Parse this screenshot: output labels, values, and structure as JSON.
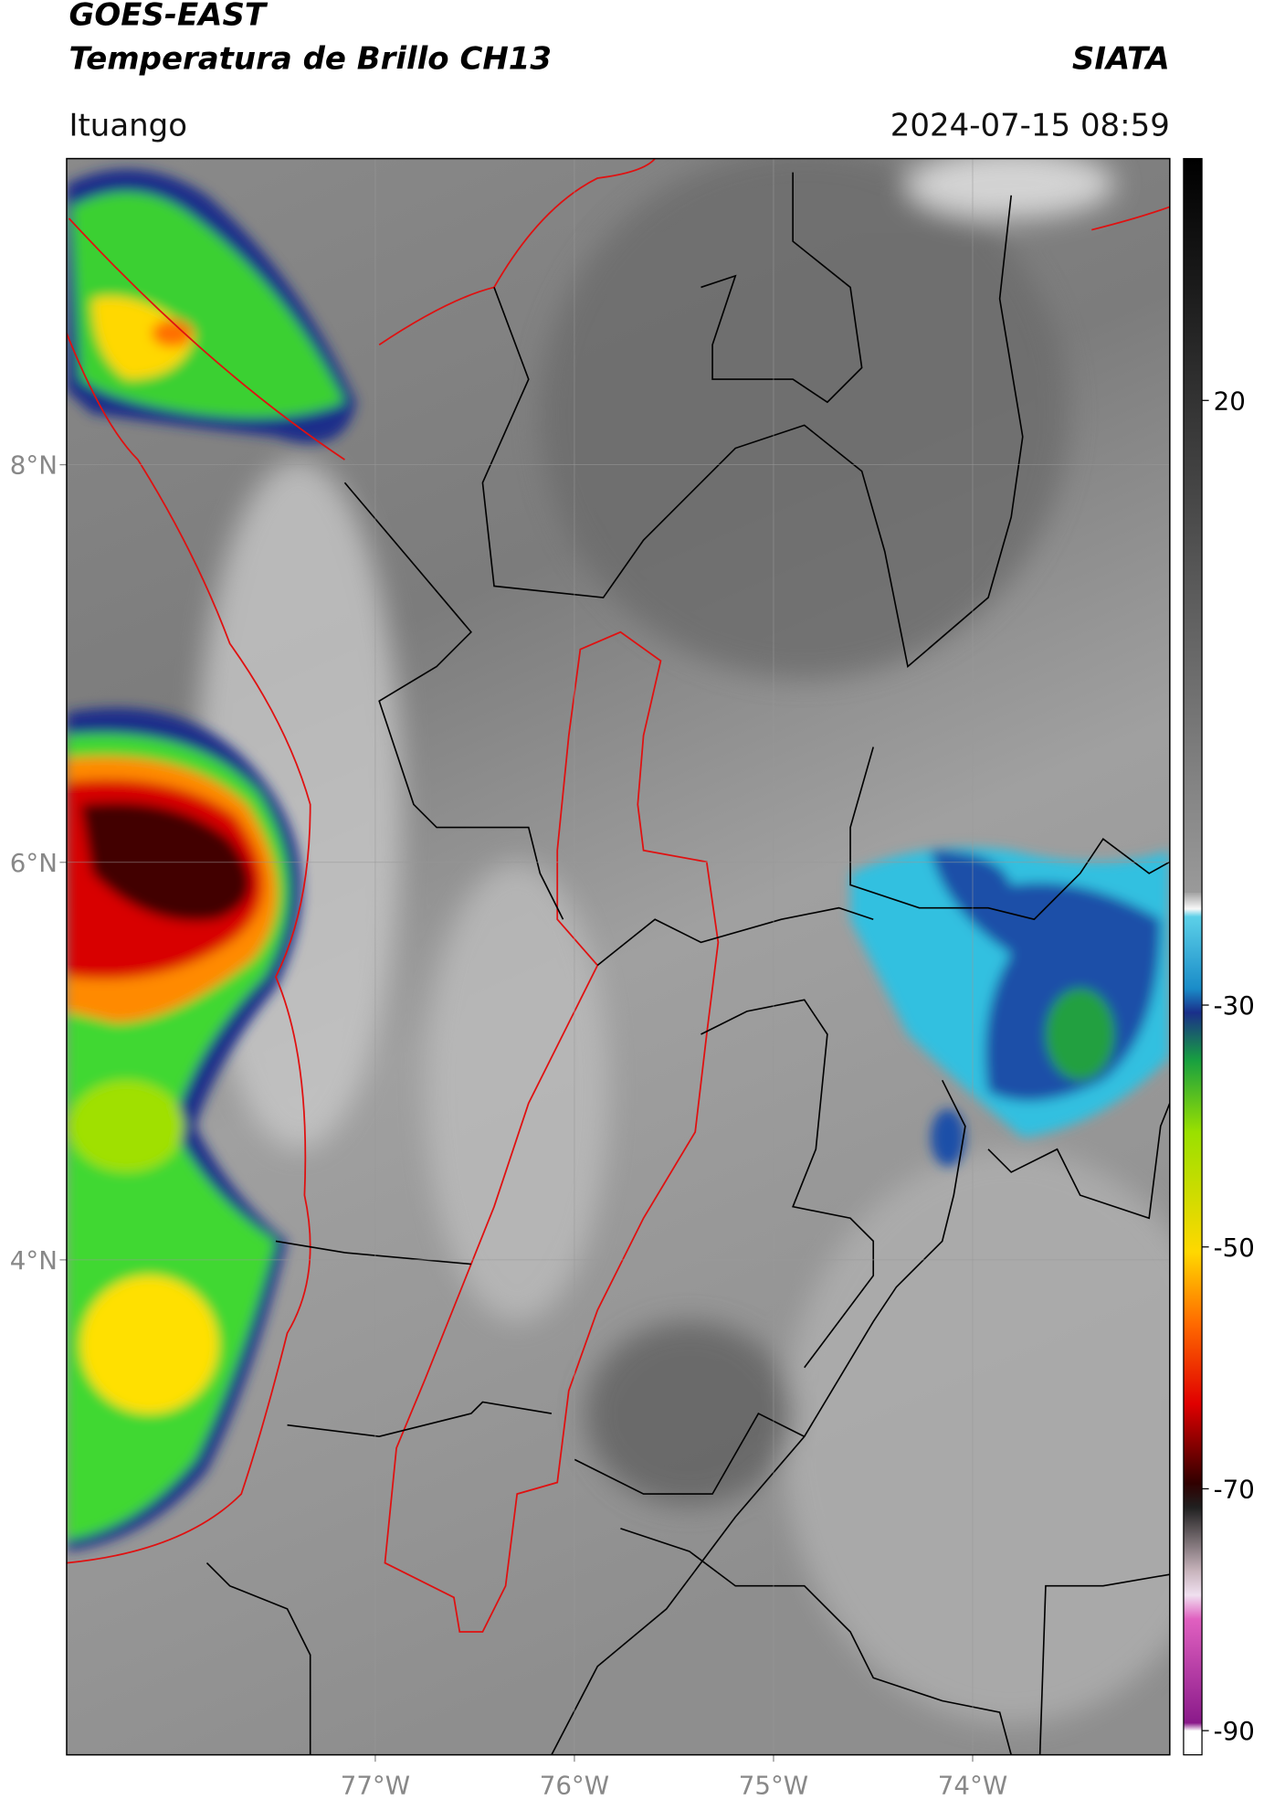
{
  "header": {
    "title": "GOES-EAST",
    "subtitle": "Temperatura de Brillo CH13",
    "brand": "SIATA",
    "location": "Ituango",
    "timestamp": "2024-07-15 08:59"
  },
  "map": {
    "lat_range": [
      1.51,
      9.54
    ],
    "lon_range": [
      -78.55,
      -73.01
    ],
    "lat_ticks": [
      {
        "value": 8,
        "label": "8°N"
      },
      {
        "value": 6,
        "label": "6°N"
      },
      {
        "value": 4,
        "label": "4°N"
      }
    ],
    "lon_ticks": [
      {
        "value": -77,
        "label": "77°W"
      },
      {
        "value": -76,
        "label": "76°W"
      },
      {
        "value": -75,
        "label": "75°W"
      },
      {
        "value": -74,
        "label": "74°W"
      }
    ]
  },
  "colorbar": {
    "range": [
      -92,
      40
    ],
    "ticks": [
      20,
      -30,
      -50,
      -70,
      -90
    ]
  }
}
